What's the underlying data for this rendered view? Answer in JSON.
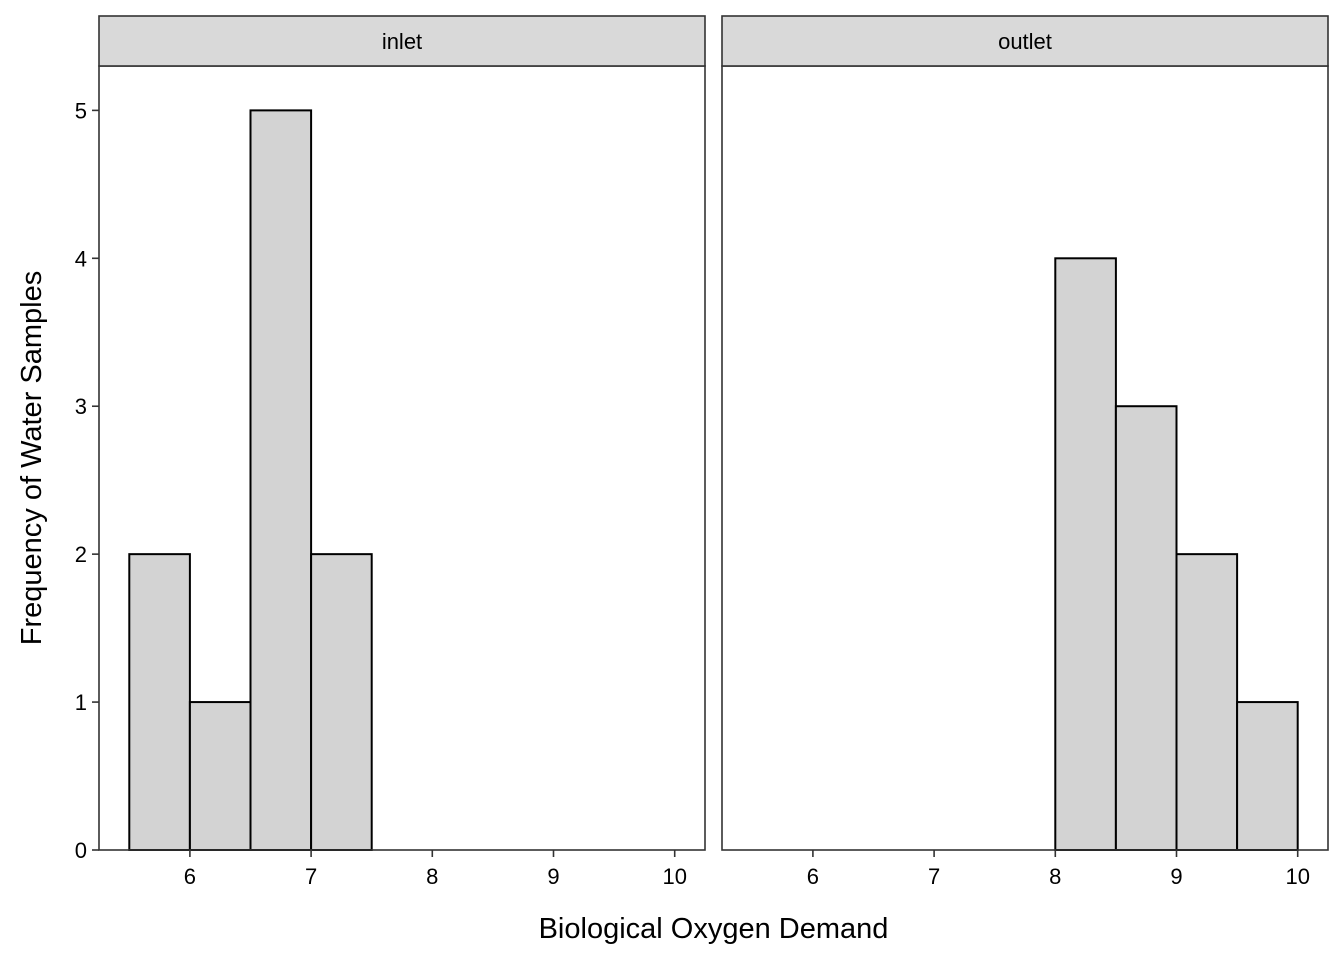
{
  "chart_data": {
    "type": "bar",
    "subtype": "faceted-histogram",
    "xlabel": "Biological Oxygen Demand",
    "ylabel": "Frequency of Water Samples",
    "xlim": [
      5.25,
      10.25
    ],
    "ylim": [
      0,
      5.3
    ],
    "xticks": [
      6,
      7,
      8,
      9,
      10
    ],
    "yticks": [
      0,
      1,
      2,
      3,
      4,
      5
    ],
    "bin_width": 0.5,
    "grid": false,
    "legend": "none",
    "colors": {
      "bar_fill": "#d3d3d3",
      "bar_stroke": "#000000",
      "strip_fill": "#d9d9d9",
      "panel_border": "#333333"
    },
    "facets": [
      {
        "name": "inlet",
        "bins": [
          {
            "start": 5.5,
            "end": 6.0,
            "count": 2
          },
          {
            "start": 6.0,
            "end": 6.5,
            "count": 1
          },
          {
            "start": 6.5,
            "end": 7.0,
            "count": 5
          },
          {
            "start": 7.0,
            "end": 7.5,
            "count": 2
          }
        ]
      },
      {
        "name": "outlet",
        "bins": [
          {
            "start": 8.0,
            "end": 8.5,
            "count": 4
          },
          {
            "start": 8.5,
            "end": 9.0,
            "count": 3
          },
          {
            "start": 9.0,
            "end": 9.5,
            "count": 2
          },
          {
            "start": 9.5,
            "end": 10.0,
            "count": 1
          }
        ]
      }
    ]
  }
}
